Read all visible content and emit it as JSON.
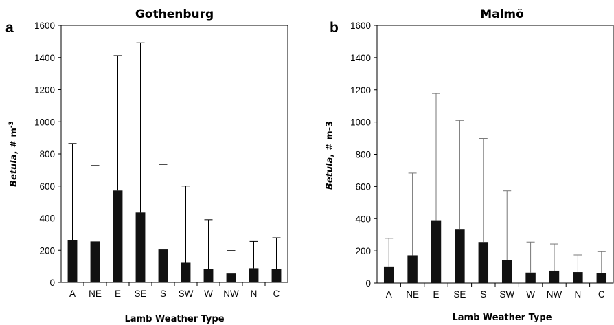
{
  "chart_data": [
    {
      "type": "bar",
      "panel": "a",
      "title": "Gothenburg",
      "xlabel": "Lamb Weather Type",
      "ylabel": {
        "italic": "Betula",
        "rest": ", # m",
        "sup": "-3"
      },
      "ylim": [
        0,
        1600
      ],
      "yticks": [
        "0",
        "200",
        "400",
        "600",
        "800",
        "1000",
        "1200",
        "1400",
        "1600"
      ],
      "categories": [
        "A",
        "NE",
        "E",
        "SE",
        "S",
        "SW",
        "W",
        "NW",
        "N",
        "C"
      ],
      "values": [
        262,
        255,
        572,
        435,
        205,
        122,
        82,
        55,
        88,
        82
      ],
      "error_upper": [
        865,
        728,
        1412,
        1492,
        735,
        600,
        390,
        198,
        255,
        278
      ],
      "bar_color": "#111111",
      "grid": false
    },
    {
      "type": "bar",
      "panel": "b",
      "title": "Malmö",
      "xlabel": "Lamb Weather Type",
      "ylabel": {
        "italic": "Betula",
        "rest": ", # m-3",
        "sup": ""
      },
      "ylim": [
        0,
        1600
      ],
      "yticks": [
        "0",
        "200",
        "400",
        "600",
        "800",
        "1000",
        "1200",
        "1400",
        "1600"
      ],
      "categories": [
        "A",
        "NE",
        "E",
        "SE",
        "S",
        "SW",
        "W",
        "NW",
        "N",
        "C"
      ],
      "values": [
        103,
        173,
        390,
        332,
        255,
        143,
        65,
        77,
        68,
        62
      ],
      "error_upper": [
        278,
        683,
        1177,
        1010,
        898,
        573,
        255,
        243,
        175,
        195
      ],
      "bar_color": "#111111",
      "grid": false
    }
  ]
}
